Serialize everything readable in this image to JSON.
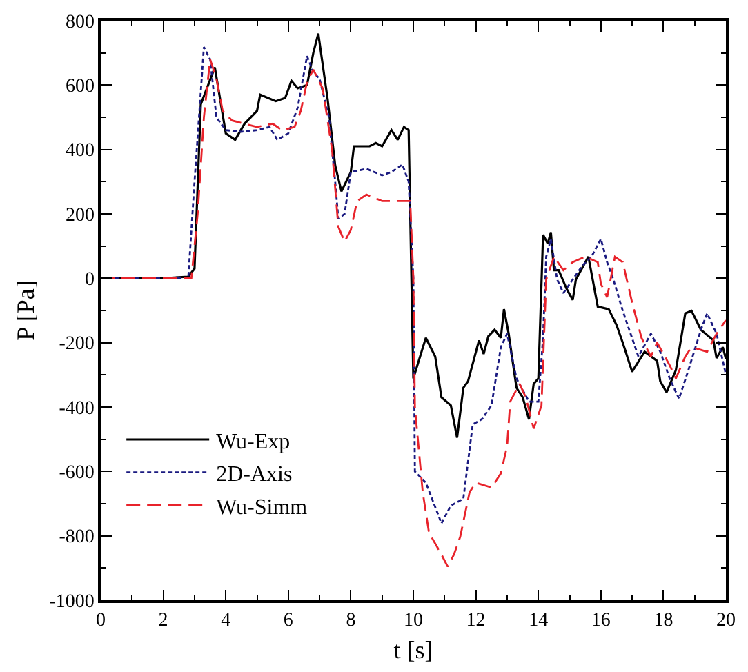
{
  "chart_data": {
    "type": "line",
    "xlabel": "t [s]",
    "ylabel": "P [Pa]",
    "xlim": [
      0,
      20
    ],
    "xticks": [
      0,
      2,
      4,
      6,
      8,
      10,
      12,
      14,
      16,
      18,
      20
    ],
    "ylim": [
      -1000,
      800
    ],
    "yticks": [
      -1000,
      -800,
      -600,
      -400,
      -200,
      0,
      200,
      400,
      600,
      800
    ],
    "legend": "bottom left",
    "marker": "none",
    "series": [
      {
        "name": "Wu-Exp",
        "color": "#000000",
        "line_style": "solid",
        "x": [
          0,
          2,
          2.8,
          3.0,
          3.2,
          3.65,
          4.0,
          4.3,
          4.6,
          5.0,
          5.1,
          5.6,
          5.9,
          6.1,
          6.3,
          6.6,
          6.8,
          6.96,
          7.26,
          7.5,
          7.7,
          8.0,
          8.1,
          8.6,
          8.8,
          9.0,
          9.3,
          9.5,
          9.7,
          9.85,
          10.0,
          10.4,
          10.7,
          10.9,
          11.2,
          11.4,
          11.6,
          11.75,
          12.1,
          12.25,
          12.4,
          12.6,
          12.8,
          12.9,
          13.05,
          13.3,
          13.5,
          13.7,
          13.85,
          14.0,
          14.15,
          14.3,
          14.4,
          14.5,
          14.65,
          14.9,
          15.1,
          15.2,
          15.6,
          15.9,
          16.25,
          16.5,
          16.7,
          17.0,
          17.4,
          17.8,
          17.9,
          18.1,
          18.4,
          18.7,
          18.9,
          19.2,
          19.6,
          19.7,
          19.9,
          20.0
        ],
        "values": [
          0,
          0,
          5,
          30,
          540,
          655,
          450,
          430,
          480,
          520,
          570,
          550,
          560,
          613,
          590,
          600,
          700,
          760,
          555,
          350,
          270,
          330,
          410,
          410,
          420,
          410,
          460,
          430,
          470,
          460,
          -311,
          -185,
          -243,
          -370,
          -395,
          -495,
          -340,
          -320,
          -193,
          -235,
          -180,
          -160,
          -185,
          -96,
          -172,
          -340,
          -370,
          -438,
          -328,
          -311,
          135,
          108,
          143,
          25,
          25,
          -32,
          -67,
          -4,
          67,
          -88,
          -96,
          -145,
          -200,
          -290,
          -228,
          -257,
          -320,
          -354,
          -285,
          -109,
          -101,
          -160,
          -193,
          -248,
          -214,
          -250
        ]
      },
      {
        "name": "2D-Axis",
        "color": "#1a1a80",
        "line_style": "dotted",
        "x": [
          0,
          2.8,
          3.0,
          3.3,
          3.5,
          3.7,
          4.0,
          4.5,
          5.0,
          5.4,
          5.65,
          6.0,
          6.3,
          6.6,
          6.8,
          7.0,
          7.3,
          7.5,
          7.6,
          7.8,
          8.0,
          8.5,
          9.0,
          9.3,
          9.65,
          9.85,
          10.0,
          10.05,
          10.4,
          10.9,
          11.2,
          11.6,
          11.9,
          12.2,
          12.5,
          12.8,
          13.0,
          13.3,
          13.7,
          14.0,
          14.15,
          14.25,
          14.4,
          14.6,
          14.8,
          15.1,
          15.4,
          15.7,
          16.0,
          16.2,
          16.4,
          16.7,
          17.2,
          17.6,
          17.9,
          18.2,
          18.5,
          18.8,
          19.2,
          19.4,
          19.7,
          20.0
        ],
        "values": [
          0,
          0,
          300,
          718,
          680,
          500,
          460,
          455,
          460,
          470,
          430,
          450,
          530,
          690,
          640,
          620,
          500,
          300,
          185,
          200,
          330,
          340,
          320,
          330,
          353,
          300,
          0,
          -600,
          -635,
          -761,
          -706,
          -685,
          -454,
          -437,
          -395,
          -214,
          -172,
          -311,
          -383,
          -383,
          -185,
          67,
          122,
          -4,
          -46,
          -4,
          38,
          67,
          122,
          50,
          -4,
          -101,
          -243,
          -172,
          -228,
          -311,
          -374,
          -285,
          -160,
          -109,
          -172,
          -299
        ]
      },
      {
        "name": "Wu-Simm",
        "color": "#e8232b",
        "line_style": "dashed",
        "x": [
          0,
          2.9,
          3.1,
          3.3,
          3.5,
          3.7,
          3.9,
          4.2,
          4.6,
          5.0,
          5.5,
          5.8,
          6.2,
          6.4,
          6.6,
          6.8,
          7.1,
          7.4,
          7.6,
          7.8,
          8.0,
          8.2,
          8.5,
          9.0,
          9.5,
          9.9,
          10.0,
          10.05,
          10.3,
          10.5,
          10.9,
          11.1,
          11.3,
          11.5,
          11.8,
          12.0,
          12.5,
          12.8,
          13.0,
          13.1,
          13.4,
          13.6,
          13.85,
          14.1,
          14.25,
          14.5,
          14.8,
          15.1,
          15.5,
          15.9,
          16.0,
          16.2,
          16.45,
          16.7,
          17.0,
          17.3,
          17.6,
          17.8,
          18.2,
          18.4,
          18.7,
          18.9,
          19.4,
          19.7,
          20.0
        ],
        "values": [
          0,
          0,
          200,
          500,
          680,
          620,
          520,
          490,
          480,
          470,
          480,
          460,
          470,
          520,
          610,
          648,
          590,
          400,
          160,
          114,
          150,
          240,
          260,
          240,
          240,
          240,
          0,
          -400,
          -664,
          -790,
          -858,
          -896,
          -858,
          -803,
          -664,
          -635,
          -650,
          -606,
          -521,
          -383,
          -328,
          -370,
          -467,
          -395,
          -4,
          67,
          25,
          50,
          67,
          50,
          -17,
          -59,
          67,
          50,
          -76,
          -185,
          -243,
          -200,
          -270,
          -311,
          -243,
          -214,
          -228,
          -172,
          -130
        ]
      }
    ]
  }
}
